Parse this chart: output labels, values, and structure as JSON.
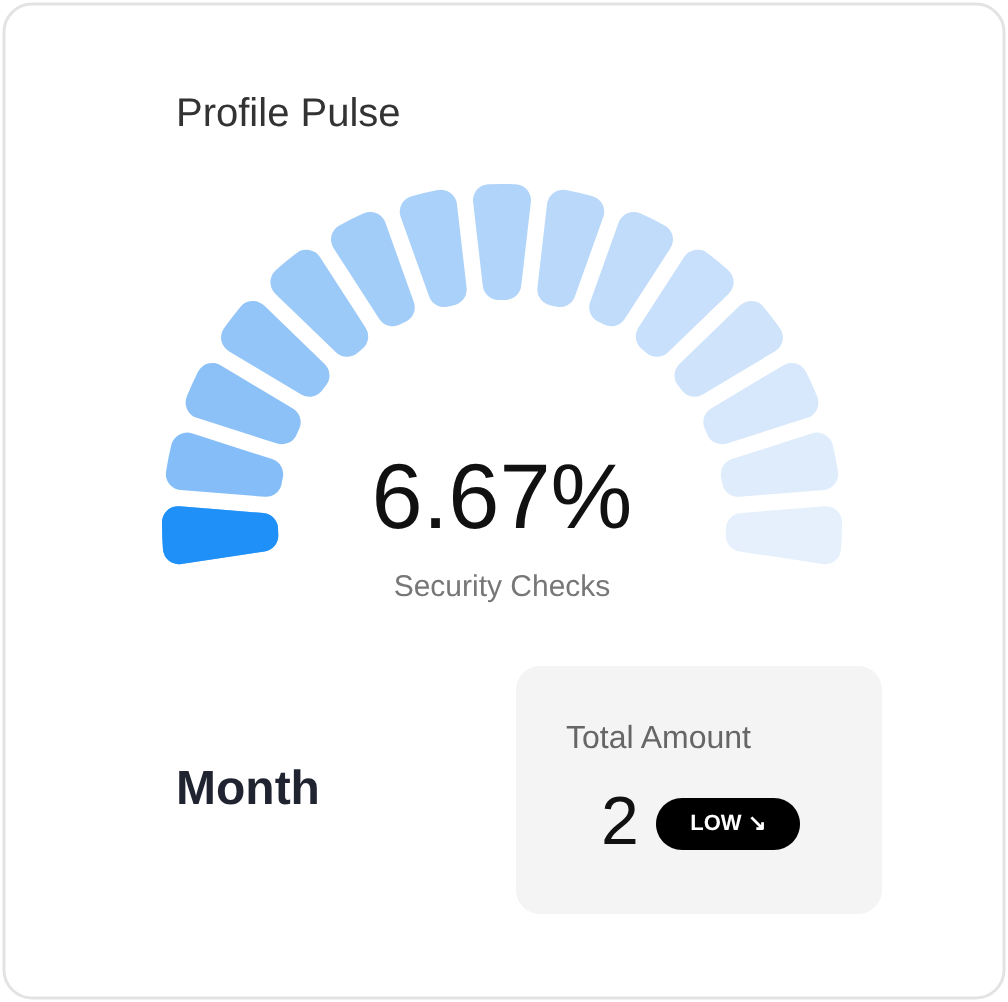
{
  "chart_data": {
    "type": "other",
    "title": "Profile Pulse",
    "categories": [
      "Security Checks"
    ],
    "values": [
      6.67
    ],
    "value_labels": [
      "6.67%"
    ],
    "annotations": [
      "Month",
      "Total Amount",
      "2",
      "LOW ↘"
    ]
  }
}
